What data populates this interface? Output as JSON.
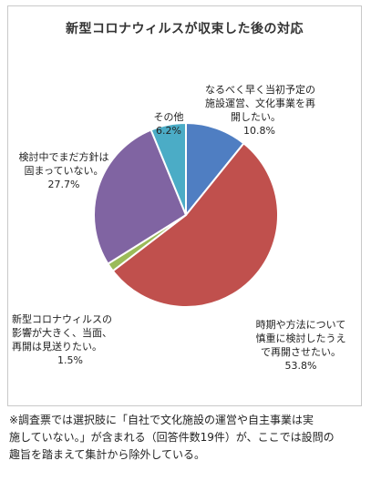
{
  "chart_data": {
    "type": "pie",
    "title": "新型コロナウィルスが収束した後の対応",
    "slices": [
      {
        "label": "なるべく早く当初予定の施設運営、文化事業を再開したい。",
        "label_lines": [
          "なるべく早く当初予定の",
          "施設運営、文化事業を再",
          "開したい。"
        ],
        "value": 10.8,
        "value_label": "10.8%",
        "color": "#4f7ec2"
      },
      {
        "label": "時期や方法について慎重に検討したうえで再開させたい。",
        "label_lines": [
          "時期や方法について",
          "慎重に検討したうえ",
          "で再開させたい。"
        ],
        "value": 53.8,
        "value_label": "53.8%",
        "color": "#c0504d"
      },
      {
        "label": "新型コロナウィルスの影響が大きく、当面、再開は見送りたい。",
        "label_lines": [
          "新型コロナウィルスの",
          "影響が大きく、当面、",
          "再開は見送りたい。"
        ],
        "value": 1.5,
        "value_label": "1.5%",
        "color": "#9bbb59"
      },
      {
        "label": "検討中でまだ方針は固まっていない。",
        "label_lines": [
          "検討中でまだ方針は",
          "固まっていない。"
        ],
        "value": 27.7,
        "value_label": "27.7%",
        "color": "#8064a2"
      },
      {
        "label": "その他",
        "label_lines": [
          "その他"
        ],
        "value": 6.2,
        "value_label": "6.2%",
        "color": "#4bacc6"
      }
    ],
    "start_angle_deg": 0,
    "direction": "clockwise",
    "legend": "none",
    "grid": false
  },
  "footnote": {
    "lines": [
      "※調査票では選択肢に「自社で文化施設の運営や自主事業は実",
      "施していない。」が含まれる（回答件数19件）が、ここでは設問の",
      "趣旨を踏まえて集計から除外している。"
    ]
  }
}
